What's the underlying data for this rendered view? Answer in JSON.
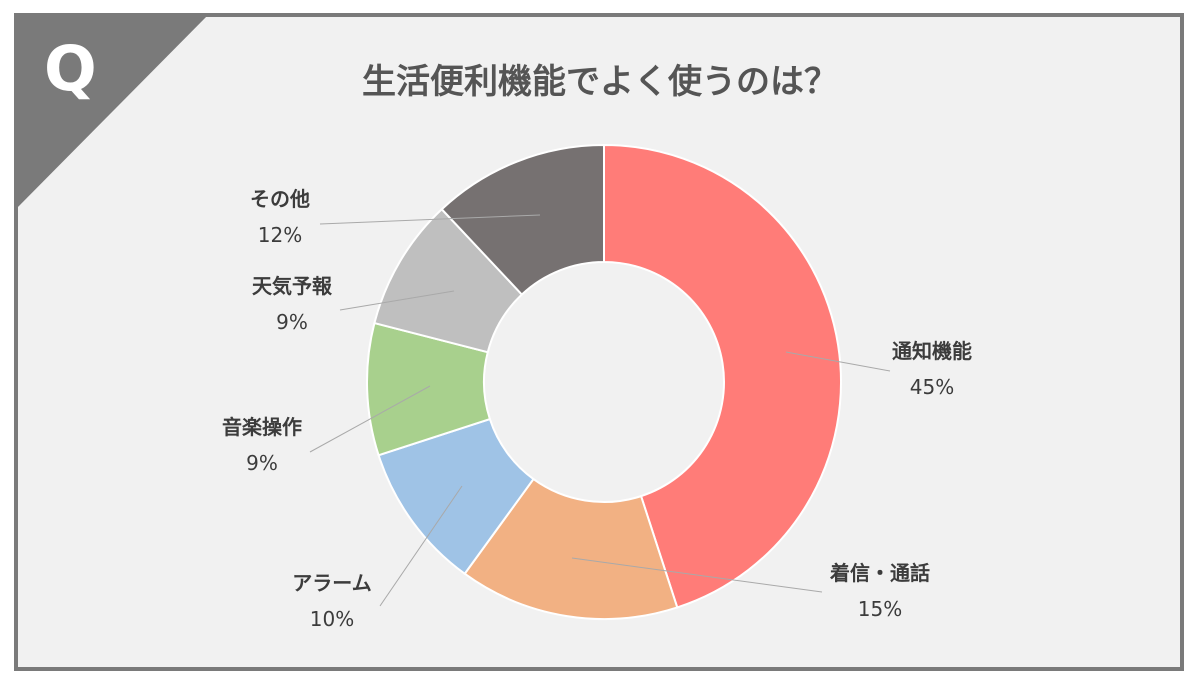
{
  "badge": {
    "letter": "Q"
  },
  "title": "生活便利機能でよく使うのは？",
  "colors": {
    "frame": "#7a7a7a",
    "panel": "#f1f1f1",
    "leader_line": "#a9a9a9"
  },
  "chart_data": {
    "type": "pie",
    "style": "donut",
    "title": "生活便利機能でよく使うのは？",
    "start": "12 o'clock, clockwise",
    "slices": [
      {
        "label": "通知機能",
        "value": 45,
        "pct_label": "45%",
        "color": "#ff7c78"
      },
      {
        "label": "着信・通話",
        "value": 15,
        "pct_label": "15%",
        "color": "#f2b183"
      },
      {
        "label": "アラーム",
        "value": 10,
        "pct_label": "10%",
        "color": "#9fc3e6"
      },
      {
        "label": "音楽操作",
        "value": 9,
        "pct_label": "9%",
        "color": "#a8d08d"
      },
      {
        "label": "天気予報",
        "value": 9,
        "pct_label": "9%",
        "color": "#bfbfbf"
      },
      {
        "label": "その他",
        "value": 12,
        "pct_label": "12%",
        "color": "#767171"
      }
    ]
  }
}
